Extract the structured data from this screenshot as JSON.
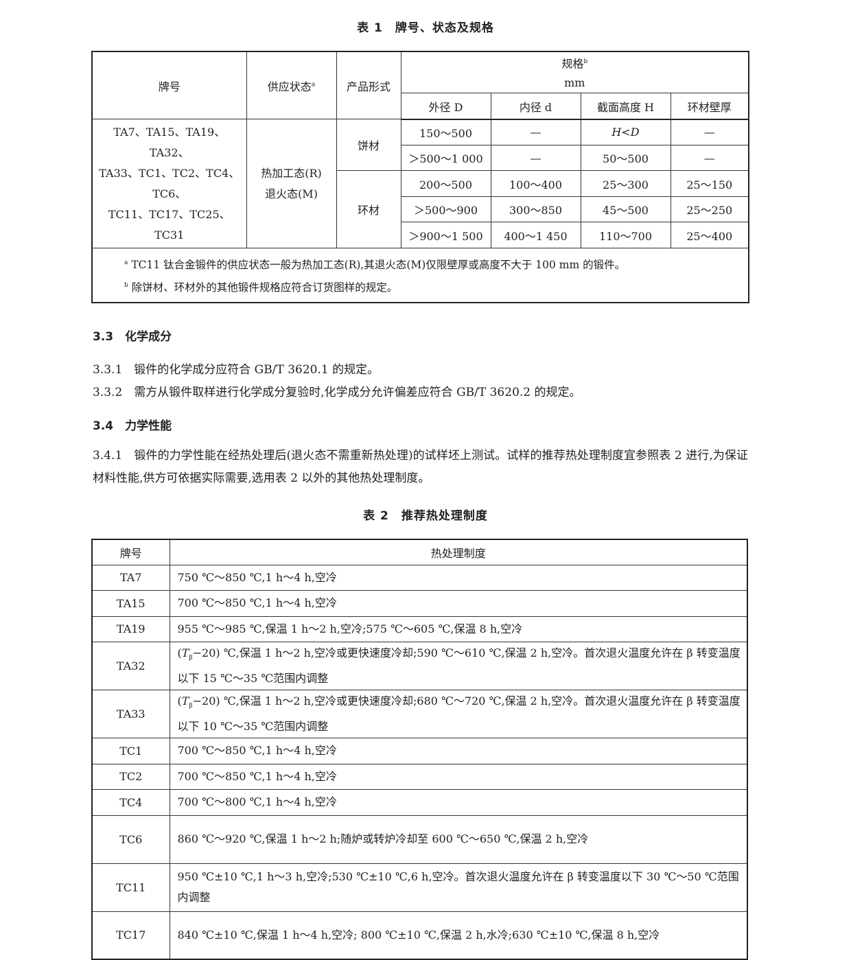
{
  "table1": {
    "caption": "表 1　牌号、状态及规格",
    "headers": {
      "grade": "牌号",
      "state": "供应状态",
      "state_note": "a",
      "form": "产品形式",
      "spec": "规格",
      "spec_note": "b",
      "unit": "mm",
      "outer": "外径 D",
      "inner": "内径 d",
      "height": "截面高度 H",
      "wall": "环材壁厚"
    },
    "grades": [
      "TA7、TA15、TA19、TA32、",
      "TA33、TC1、TC2、TC4、TC6、",
      "TC11、TC17、TC25、TC31"
    ],
    "states": [
      "热加工态(R)",
      "退火态(M)"
    ],
    "forms": [
      {
        "name": "饼材",
        "rows": [
          [
            "150～500",
            "—",
            "H<D",
            "—"
          ],
          [
            "＞500～1 000",
            "—",
            "50～500",
            "—"
          ]
        ]
      },
      {
        "name": "环材",
        "rows": [
          [
            "200～500",
            "100～400",
            "25～300",
            "25～150"
          ],
          [
            "＞500～900",
            "300～850",
            "45～500",
            "25～250"
          ],
          [
            "＞900～1 500",
            "400～1 450",
            "110～700",
            "25～400"
          ]
        ]
      }
    ],
    "footnotes": [
      {
        "mark": "a",
        "text": "TC11 钛合金锻件的供应状态一般为热加工态(R),其退火态(M)仅限壁厚或高度不大于 100 mm 的锻件。"
      },
      {
        "mark": "b",
        "text": "除饼材、环材外的其他锻件规格应符合订货图样的规定。"
      }
    ]
  },
  "sections": {
    "s33": {
      "num": "3.3",
      "title": "化学成分"
    },
    "s331": {
      "num": "3.3.1",
      "text": "锻件的化学成分应符合 GB/T 3620.1 的规定。"
    },
    "s332": {
      "num": "3.3.2",
      "text": "需方从锻件取样进行化学成分复验时,化学成分允许偏差应符合 GB/T 3620.2 的规定。"
    },
    "s34": {
      "num": "3.4",
      "title": "力学性能"
    },
    "s341": {
      "num": "3.4.1",
      "text": "锻件的力学性能在经热处理后(退火态不需重新热处理)的试样坯上测试。试样的推荐热处理制度宜参照表 2 进行,为保证材料性能,供方可依据实际需要,选用表 2 以外的其他热处理制度。"
    }
  },
  "table2": {
    "caption": "表 2　推荐热处理制度",
    "headers": {
      "grade": "牌号",
      "process": "热处理制度"
    },
    "rows": [
      {
        "grade": "TA7",
        "text": "750 ℃～850 ℃,1 h～4 h,空冷"
      },
      {
        "grade": "TA15",
        "text": "700 ℃～850 ℃,1 h～4 h,空冷"
      },
      {
        "grade": "TA19",
        "text": "955 ℃～985 ℃,保温 1 h～2 h,空冷;575 ℃～605 ℃,保温 8 h,空冷"
      },
      {
        "grade": "TA32",
        "pre": "(",
        "T": "T",
        "sub": "β",
        "text": "−20) ℃,保温 1 h～2 h,空冷或更快速度冷却;590 ℃～610 ℃,保温 2 h,空冷。首次退火温度允许在 β 转变温度以下 15 ℃～35 ℃范围内调整"
      },
      {
        "grade": "TA33",
        "pre": "(",
        "T": "T",
        "sub": "β",
        "text": "−20) ℃,保温 1 h～2 h,空冷或更快速度冷却;680 ℃～720 ℃,保温 2 h,空冷。首次退火温度允许在 β 转变温度以下 10 ℃～35 ℃范围内调整"
      },
      {
        "grade": "TC1",
        "text": "700 ℃～850 ℃,1 h～4 h,空冷"
      },
      {
        "grade": "TC2",
        "text": "700 ℃～850 ℃,1 h～4 h,空冷"
      },
      {
        "grade": "TC4",
        "text": "700 ℃～800 ℃,1 h～4 h,空冷"
      },
      {
        "grade": "TC6",
        "text": "860 ℃～920 ℃,保温 1 h～2 h;随炉或转炉冷却至 600 ℃～650 ℃,保温 2 h,空冷"
      },
      {
        "grade": "TC11",
        "text": "950 ℃±10 ℃,1 h～3 h,空冷;530 ℃±10 ℃,6 h,空冷。首次退火温度允许在 β 转变温度以下 30 ℃～50 ℃范围内调整"
      },
      {
        "grade": "TC17",
        "text": "840 ℃±10 ℃,保温 1 h～4 h,空冷; 800 ℃±10 ℃,保温 2 h,水冷;630 ℃±10 ℃,保温 8 h,空冷"
      }
    ]
  }
}
